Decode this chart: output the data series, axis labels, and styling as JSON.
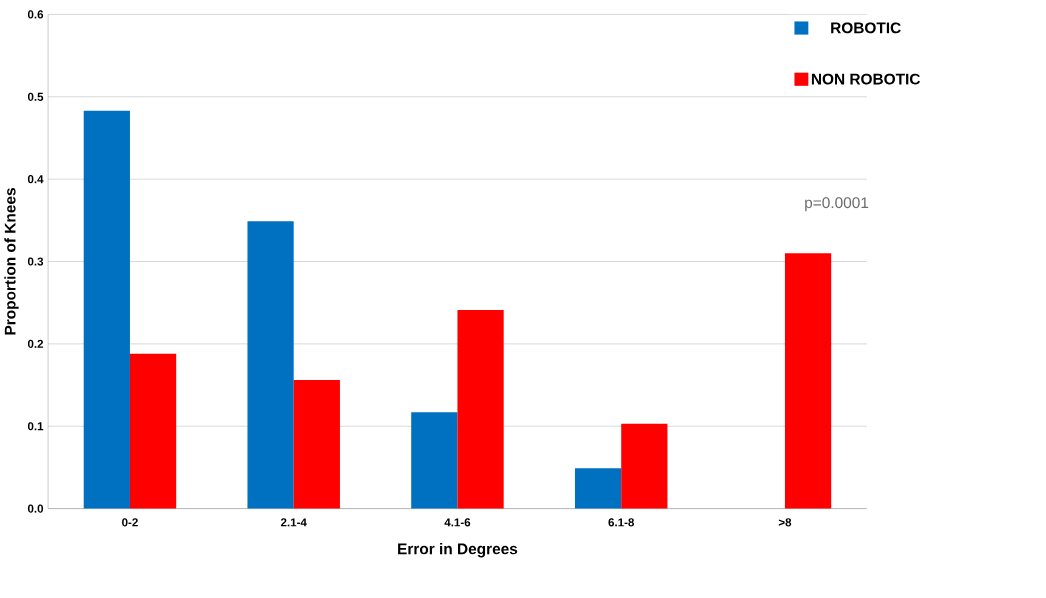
{
  "chart_data": {
    "type": "bar",
    "xlabel": "Error in Degrees",
    "ylabel": "Proportion of Knees",
    "categories": [
      "0-2",
      "2.1-4",
      "4.1-6",
      "6.1-8",
      ">8"
    ],
    "series": [
      {
        "name": "ROBOTIC",
        "color": "#0070c0",
        "values": [
          0.483,
          0.349,
          0.117,
          0.049,
          0
        ]
      },
      {
        "name": "NON ROBOTIC",
        "color": "#ff0000",
        "values": [
          0.188,
          0.156,
          0.241,
          0.103,
          0.31
        ]
      }
    ],
    "ylim": [
      0,
      0.6
    ],
    "yticks": [
      {
        "value": 0,
        "label": "0.0"
      },
      {
        "value": 0.1,
        "label": "0.1"
      },
      {
        "value": 0.2,
        "label": "0.2"
      },
      {
        "value": 0.3,
        "label": "0.3"
      },
      {
        "value": 0.4,
        "label": "0.4"
      },
      {
        "value": 0.5,
        "label": "0.5"
      },
      {
        "value": 0.6,
        "label": "0.6"
      }
    ],
    "grid": "y",
    "legend": "top right",
    "annotations": [
      "p=0.0001"
    ]
  }
}
